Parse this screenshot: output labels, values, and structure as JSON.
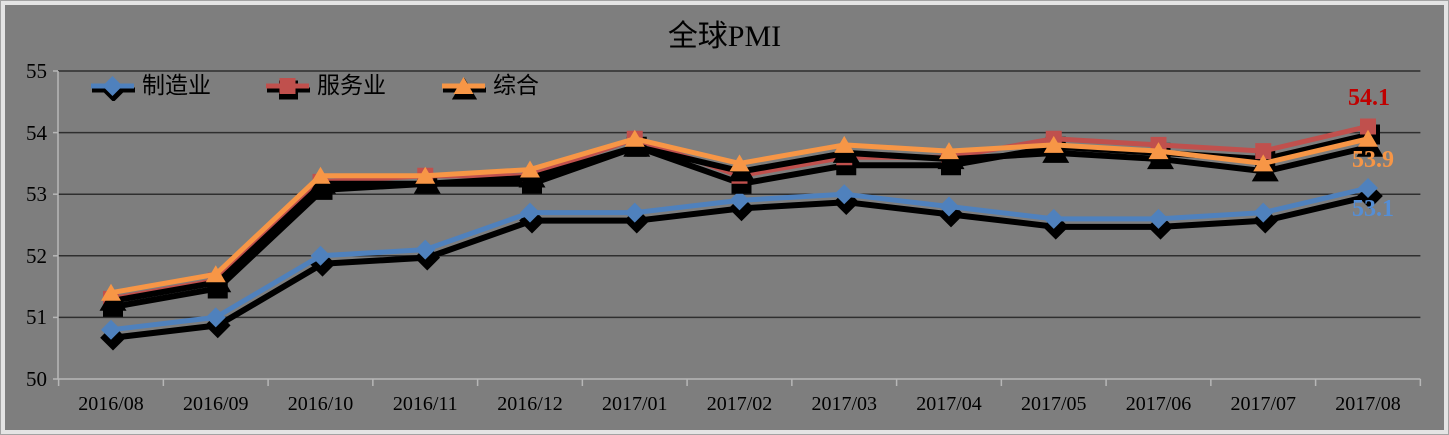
{
  "chart_data": {
    "type": "line",
    "title": "全球PMI",
    "categories": [
      "2016/08",
      "2016/09",
      "2016/10",
      "2016/11",
      "2016/12",
      "2017/01",
      "2017/02",
      "2017/03",
      "2017/04",
      "2017/05",
      "2017/06",
      "2017/07",
      "2017/08"
    ],
    "series": [
      {
        "name": "制造业",
        "color": "#4F81BD",
        "marker": "diamond",
        "values": [
          50.8,
          51.0,
          52.0,
          52.1,
          52.7,
          52.7,
          52.9,
          53.0,
          52.8,
          52.6,
          52.6,
          52.7,
          53.1
        ]
      },
      {
        "name": "服务业",
        "color": "#C0504D",
        "marker": "square",
        "values": [
          51.3,
          51.6,
          53.2,
          53.3,
          53.3,
          53.9,
          53.3,
          53.6,
          53.6,
          53.9,
          53.8,
          53.7,
          54.1
        ]
      },
      {
        "name": "综合",
        "color": "#F79646",
        "marker": "triangle",
        "values": [
          51.4,
          51.7,
          53.3,
          53.3,
          53.4,
          53.9,
          53.5,
          53.8,
          53.7,
          53.8,
          53.7,
          53.5,
          53.9
        ]
      }
    ],
    "ylim": [
      50,
      55
    ],
    "yticks": [
      50,
      51,
      52,
      53,
      54,
      55
    ],
    "grid": true,
    "legend_position": "top-left-inside",
    "background": "#7e7e7e",
    "end_labels": [
      {
        "series": "服务业",
        "text": "54.1",
        "color": "#C00000"
      },
      {
        "series": "综合",
        "text": "53.9",
        "color": "#F79646"
      },
      {
        "series": "制造业",
        "text": "53.1",
        "color": "#558ED5"
      }
    ]
  }
}
